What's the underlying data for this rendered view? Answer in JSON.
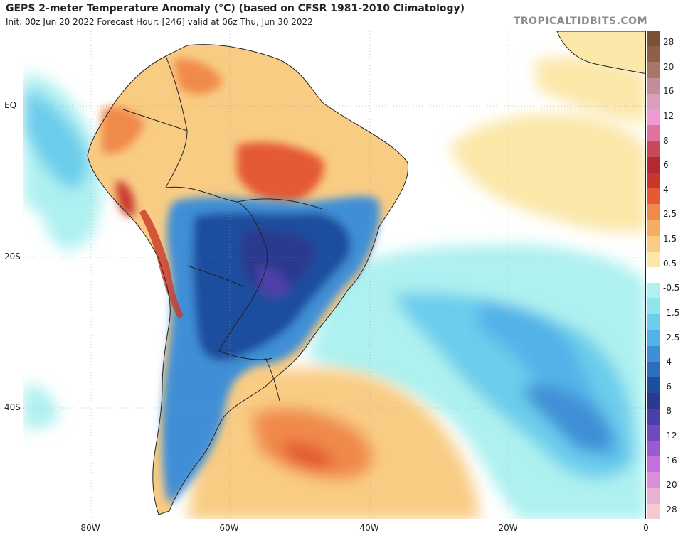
{
  "header": {
    "title": "GEPS 2-meter Temperature Anomaly (°C) (based on CFSR 1981-2010 Climatology)",
    "subtitle": "Init: 00z Jun 20 2022   Forecast Hour: [246]   valid at 06z Thu, Jun 30 2022",
    "brand": "TROPICALTIDBITS.COM"
  },
  "map": {
    "lat_labels": [
      "EQ",
      "20S",
      "40S"
    ],
    "lon_labels": [
      "80W",
      "60W",
      "40W",
      "20W",
      "0"
    ]
  },
  "colorbar": {
    "labels": [
      "28",
      "20",
      "16",
      "12",
      "8",
      "6",
      "4",
      "2.5",
      "1.5",
      "0.5",
      "-0.5",
      "-1.5",
      "-2.5",
      "-4",
      "-6",
      "-8",
      "-12",
      "-16",
      "-20",
      "-28"
    ],
    "colors": [
      "#7a5238",
      "#8f6048",
      "#a77865",
      "#c28d9b",
      "#d8a0b8",
      "#ee9ad4",
      "#e0729c",
      "#c74a5a",
      "#b22a32",
      "#c8382a",
      "#e45a32",
      "#f08a4c",
      "#f5ad62",
      "#f9cc84",
      "#fbe7a8",
      "#ffffff",
      "#aef1f0",
      "#8ee6ec",
      "#6ccdec",
      "#53b2e8",
      "#3f8fd6",
      "#2d6ebe",
      "#1e4e9e",
      "#2c3a8e",
      "#4d3fa8",
      "#7248c0",
      "#9a5ad2",
      "#c46fdd",
      "#d98fd8",
      "#eab0d4",
      "#f4c9cf"
    ]
  }
}
